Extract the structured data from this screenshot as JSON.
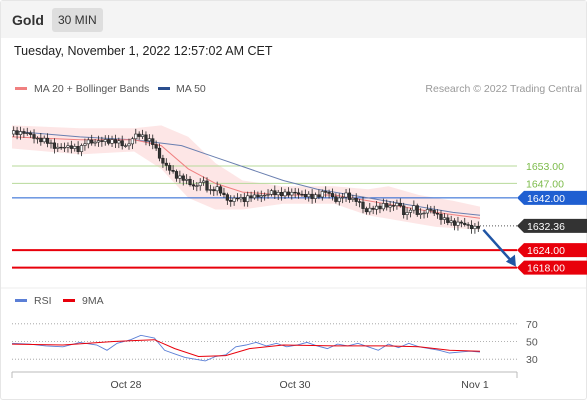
{
  "header": {
    "symbol": "Gold",
    "timeframe": "30 MIN",
    "datetime": "Tuesday, November 1, 2022 12:57:02 AM CET"
  },
  "legend": {
    "ma20_bb": "MA 20 + Bollinger Bands",
    "ma50": "MA 50",
    "credit": "Research © 2022 Trading Central",
    "rsi": "RSI",
    "rsi_ma": "9MA"
  },
  "colors": {
    "up": "#ffffff",
    "down": "#333333",
    "ma20": "#f08080",
    "bands": "#fde3e3",
    "ma50": "#6a7fb0",
    "green": "#7cbb4a",
    "blue": "#1f5fd1",
    "red": "#e8000b",
    "arrow": "#2055a5",
    "rsi": "#5b7fd6",
    "rsi_ma": "#e8000b"
  },
  "chart_data": [
    {
      "type": "candlestick",
      "series_labels": [
        "MA 20 + Bollinger Bands",
        "MA 50"
      ],
      "x_ticks": [
        "Oct 28",
        "Oct 30",
        "Nov 1"
      ],
      "ylim": [
        1612,
        1674
      ],
      "price_path": [
        [
          0,
          1664
        ],
        [
          6,
          1665
        ],
        [
          12,
          1663
        ],
        [
          18,
          1662
        ],
        [
          24,
          1660
        ],
        [
          30,
          1659
        ],
        [
          36,
          1660
        ],
        [
          40,
          1658
        ],
        [
          44,
          1662
        ],
        [
          50,
          1661
        ],
        [
          56,
          1662
        ],
        [
          62,
          1661
        ],
        [
          68,
          1660
        ],
        [
          72,
          1663
        ],
        [
          76,
          1664
        ],
        [
          80,
          1662
        ],
        [
          84,
          1660
        ],
        [
          88,
          1655
        ],
        [
          92,
          1652
        ],
        [
          96,
          1650
        ],
        [
          100,
          1649
        ],
        [
          104,
          1647
        ],
        [
          108,
          1646
        ],
        [
          112,
          1648
        ],
        [
          116,
          1644
        ],
        [
          120,
          1646
        ],
        [
          124,
          1643
        ],
        [
          128,
          1641
        ],
        [
          132,
          1642
        ],
        [
          136,
          1641
        ],
        [
          140,
          1643
        ],
        [
          144,
          1642
        ],
        [
          148,
          1643
        ],
        [
          152,
          1644
        ],
        [
          156,
          1643
        ],
        [
          160,
          1644
        ],
        [
          164,
          1643
        ],
        [
          168,
          1644
        ],
        [
          172,
          1643
        ],
        [
          176,
          1642
        ],
        [
          180,
          1643
        ],
        [
          184,
          1644
        ],
        [
          188,
          1643
        ],
        [
          192,
          1641
        ],
        [
          196,
          1643
        ],
        [
          200,
          1642
        ],
        [
          204,
          1641
        ],
        [
          208,
          1637
        ],
        [
          212,
          1639
        ],
        [
          216,
          1638
        ],
        [
          220,
          1640
        ],
        [
          224,
          1639
        ],
        [
          228,
          1640
        ],
        [
          232,
          1636
        ],
        [
          236,
          1639
        ],
        [
          240,
          1636
        ],
        [
          244,
          1638
        ],
        [
          248,
          1637
        ],
        [
          252,
          1636
        ],
        [
          256,
          1634
        ],
        [
          260,
          1633
        ],
        [
          264,
          1634
        ],
        [
          268,
          1632
        ],
        [
          272,
          1632
        ],
        [
          276,
          1632.4
        ]
      ],
      "ma20_path": [
        [
          0,
          1663
        ],
        [
          40,
          1662
        ],
        [
          72,
          1662
        ],
        [
          88,
          1660
        ],
        [
          104,
          1652
        ],
        [
          120,
          1647
        ],
        [
          136,
          1644
        ],
        [
          160,
          1643
        ],
        [
          190,
          1643
        ],
        [
          210,
          1641
        ],
        [
          230,
          1639
        ],
        [
          250,
          1637
        ],
        [
          276,
          1635
        ]
      ],
      "band_upper_path": [
        [
          0,
          1667
        ],
        [
          40,
          1666
        ],
        [
          72,
          1666
        ],
        [
          88,
          1667
        ],
        [
          104,
          1663
        ],
        [
          120,
          1654
        ],
        [
          136,
          1648
        ],
        [
          160,
          1646
        ],
        [
          190,
          1646
        ],
        [
          210,
          1645
        ],
        [
          222,
          1646
        ],
        [
          240,
          1643
        ],
        [
          260,
          1641
        ],
        [
          276,
          1639
        ]
      ],
      "band_lower_path": [
        [
          0,
          1659
        ],
        [
          40,
          1657
        ],
        [
          72,
          1658
        ],
        [
          88,
          1652
        ],
        [
          104,
          1642
        ],
        [
          120,
          1638
        ],
        [
          136,
          1638
        ],
        [
          160,
          1640
        ],
        [
          190,
          1640
        ],
        [
          210,
          1636
        ],
        [
          230,
          1634
        ],
        [
          250,
          1632
        ],
        [
          276,
          1631
        ]
      ],
      "ma50_path": [
        [
          0,
          1665
        ],
        [
          40,
          1663
        ],
        [
          72,
          1662
        ],
        [
          100,
          1660
        ],
        [
          120,
          1656
        ],
        [
          140,
          1652
        ],
        [
          160,
          1648
        ],
        [
          180,
          1645
        ],
        [
          200,
          1643
        ],
        [
          220,
          1641
        ],
        [
          240,
          1639
        ],
        [
          260,
          1637
        ],
        [
          276,
          1636
        ]
      ],
      "levels": [
        {
          "label": "1653.00",
          "value": 1653,
          "color": "green",
          "style": "thin"
        },
        {
          "label": "1647.00",
          "value": 1647,
          "color": "green",
          "style": "thin"
        },
        {
          "label": "1642.00",
          "value": 1642,
          "color": "blue",
          "style": "line"
        },
        {
          "label": "1632.36",
          "value": 1632.36,
          "color": "dark",
          "style": "dotted"
        },
        {
          "label": "1624.00",
          "value": 1624,
          "color": "red",
          "style": "thick"
        },
        {
          "label": "1618.00",
          "value": 1618,
          "color": "red",
          "style": "thick"
        }
      ],
      "arrow": {
        "from": [
          278,
          1631
        ],
        "to": [
          296,
          1619
        ]
      }
    },
    {
      "type": "line",
      "ylim": [
        20,
        80
      ],
      "y_ticks": [
        70,
        50,
        30
      ],
      "rsi_path": [
        [
          0,
          48
        ],
        [
          10,
          47
        ],
        [
          20,
          45
        ],
        [
          30,
          44
        ],
        [
          40,
          49
        ],
        [
          50,
          46
        ],
        [
          56,
          40
        ],
        [
          62,
          48
        ],
        [
          70,
          52
        ],
        [
          76,
          57
        ],
        [
          84,
          54
        ],
        [
          90,
          40
        ],
        [
          96,
          36
        ],
        [
          102,
          32
        ],
        [
          108,
          30
        ],
        [
          114,
          28
        ],
        [
          120,
          33
        ],
        [
          126,
          35
        ],
        [
          132,
          44
        ],
        [
          138,
          46
        ],
        [
          144,
          49
        ],
        [
          150,
          45
        ],
        [
          156,
          48
        ],
        [
          162,
          44
        ],
        [
          168,
          46
        ],
        [
          174,
          49
        ],
        [
          180,
          45
        ],
        [
          186,
          42
        ],
        [
          192,
          47
        ],
        [
          198,
          45
        ],
        [
          204,
          48
        ],
        [
          210,
          44
        ],
        [
          216,
          40
        ],
        [
          222,
          47
        ],
        [
          228,
          43
        ],
        [
          234,
          48
        ],
        [
          240,
          44
        ],
        [
          246,
          42
        ],
        [
          252,
          40
        ],
        [
          258,
          37
        ],
        [
          264,
          38
        ],
        [
          270,
          39
        ],
        [
          276,
          38
        ]
      ],
      "ma_path": [
        [
          0,
          47
        ],
        [
          30,
          46
        ],
        [
          60,
          50
        ],
        [
          84,
          52
        ],
        [
          96,
          42
        ],
        [
          110,
          33
        ],
        [
          126,
          34
        ],
        [
          140,
          42
        ],
        [
          160,
          46
        ],
        [
          190,
          45
        ],
        [
          220,
          45
        ],
        [
          240,
          44
        ],
        [
          258,
          40
        ],
        [
          276,
          39
        ]
      ]
    }
  ]
}
